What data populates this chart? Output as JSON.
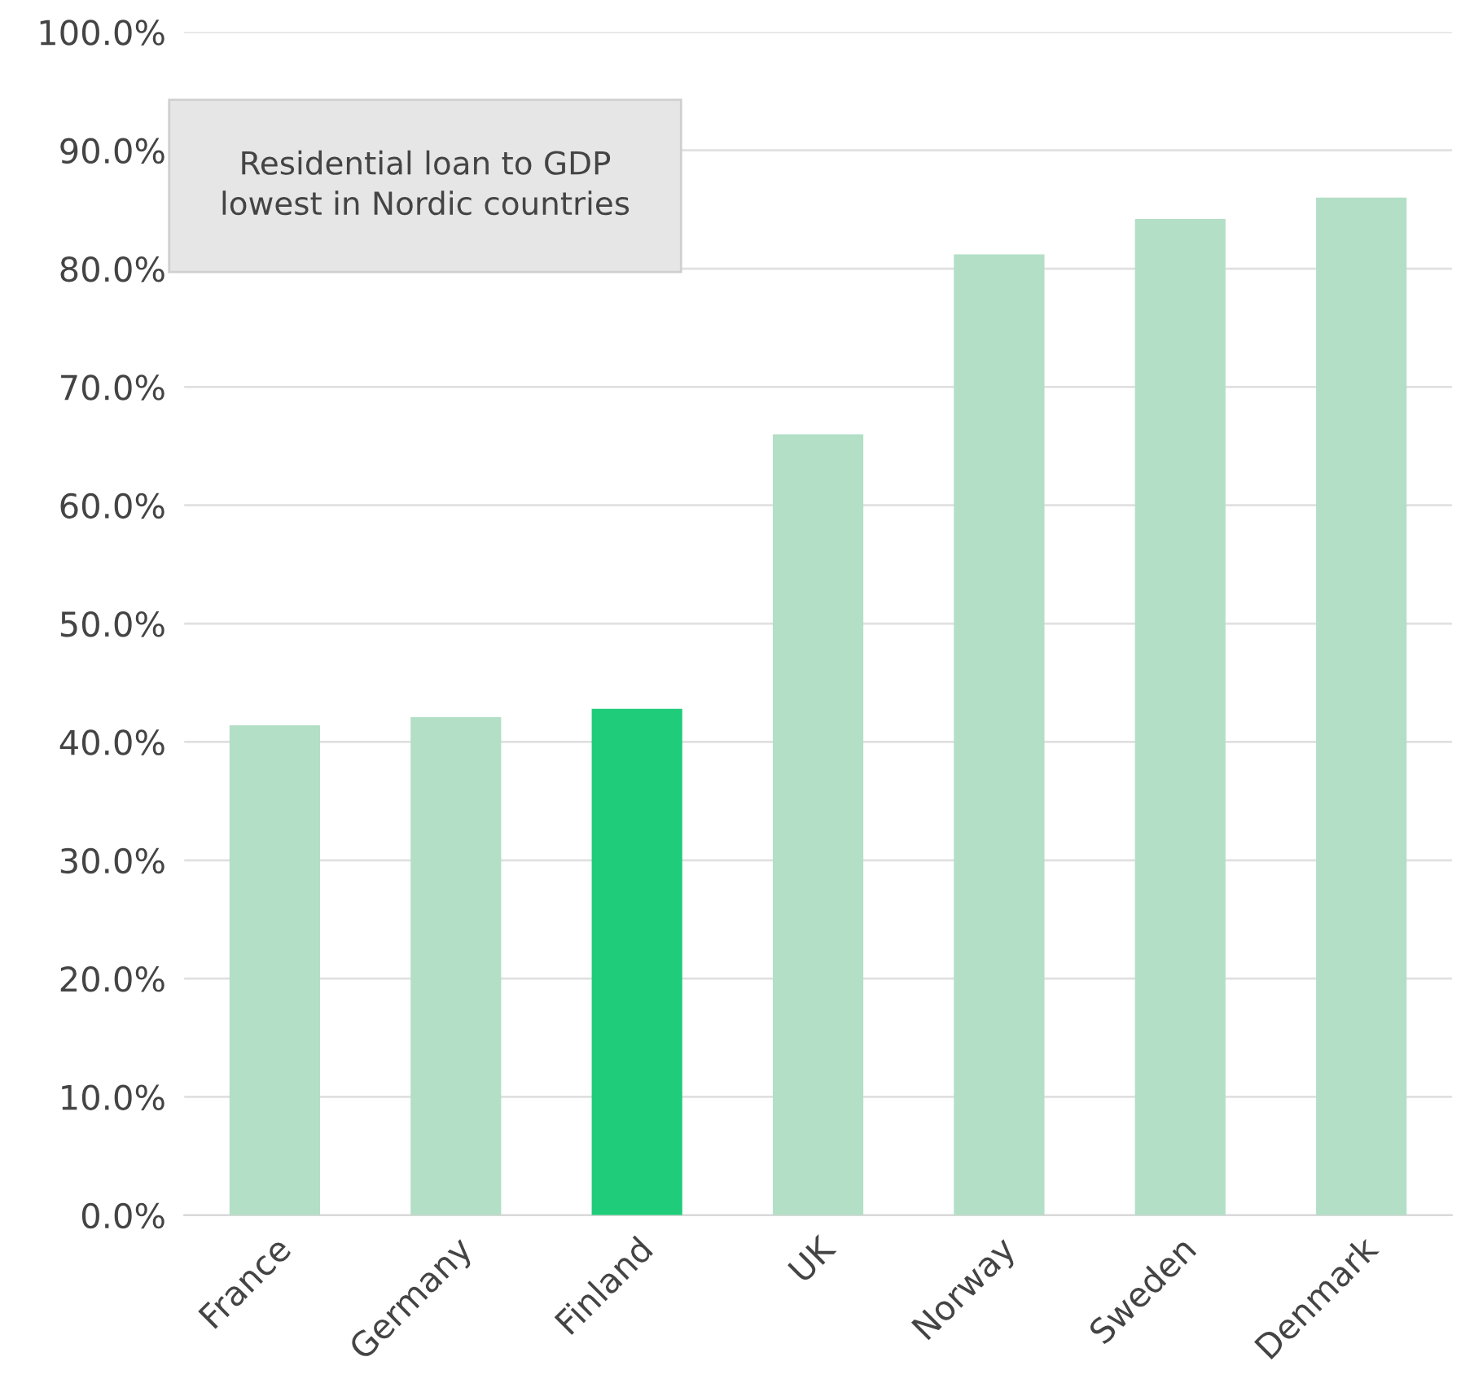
{
  "chart_data": {
    "type": "bar",
    "categories": [
      "France",
      "Germany",
      "Finland",
      "UK",
      "Norway",
      "Sweden",
      "Denmark"
    ],
    "values": [
      41.4,
      42.1,
      42.8,
      66.0,
      81.2,
      84.2,
      86.0
    ],
    "colors": [
      "#b2dfc6",
      "#b2dfc6",
      "#1fcc7a",
      "#b2dfc6",
      "#b2dfc6",
      "#b2dfc6",
      "#b2dfc6"
    ],
    "ylim": [
      0,
      100
    ],
    "yticks": [
      {
        "value": 0,
        "label": "0.0%"
      },
      {
        "value": 10,
        "label": "10.0%"
      },
      {
        "value": 20,
        "label": "20.0%"
      },
      {
        "value": 30,
        "label": "30.0%"
      },
      {
        "value": 40,
        "label": "40.0%"
      },
      {
        "value": 50,
        "label": "50.0%"
      },
      {
        "value": 60,
        "label": "60.0%"
      },
      {
        "value": 70,
        "label": "70.0%"
      },
      {
        "value": 80,
        "label": "80.0%"
      },
      {
        "value": 90,
        "label": "90.0%"
      },
      {
        "value": 100,
        "label": "100.0%"
      }
    ],
    "grid": "y",
    "annotations": [
      "Residential loan to GDP\nlowest in Nordic countries"
    ]
  }
}
